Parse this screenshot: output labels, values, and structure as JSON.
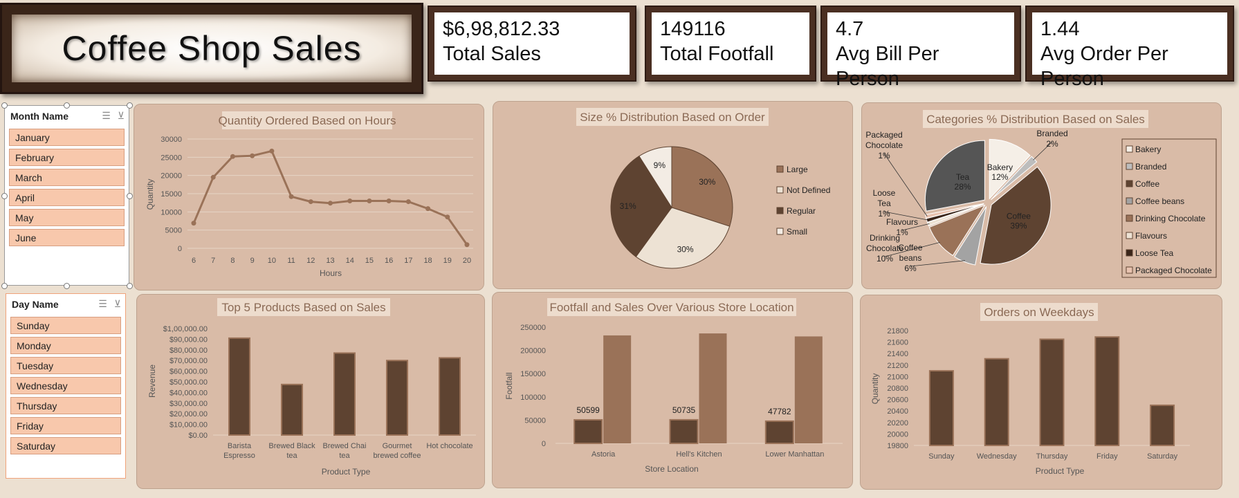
{
  "title": "Coffee Shop Sales",
  "kpis": [
    {
      "value": "$6,98,812.33",
      "label": "Total Sales"
    },
    {
      "value": "149116",
      "label": "Total Footfall"
    },
    {
      "value": "4.7",
      "label": "Avg Bill Per Person"
    },
    {
      "value": "1.44",
      "label": "Avg Order Per Person"
    }
  ],
  "month_slicer": {
    "header": "Month Name",
    "items": [
      "January",
      "February",
      "March",
      "April",
      "May",
      "June"
    ]
  },
  "day_slicer": {
    "header": "Day Name",
    "items": [
      "Sunday",
      "Monday",
      "Tuesday",
      "Wednesday",
      "Thursday",
      "Friday",
      "Saturday"
    ]
  },
  "colors": {
    "dark": "#5e4331",
    "medium": "#9a7258",
    "light": "#ede2d4",
    "gray": "#555555",
    "panel": "#d9bba7"
  },
  "chart_data": [
    {
      "id": "hours",
      "type": "line",
      "title": "Quantity Ordered Based on Hours",
      "xlabel": "Hours",
      "ylabel": "Quantity",
      "x": [
        6,
        7,
        8,
        9,
        10,
        11,
        12,
        13,
        14,
        15,
        16,
        17,
        18,
        19,
        20
      ],
      "values": [
        6900,
        19500,
        25200,
        25400,
        26700,
        14200,
        12800,
        12400,
        13000,
        13000,
        13000,
        12800,
        10900,
        8600,
        1000
      ],
      "ylim": [
        0,
        30000
      ],
      "yticks": [
        0,
        5000,
        10000,
        15000,
        20000,
        25000,
        30000
      ],
      "grid": true
    },
    {
      "id": "size",
      "type": "pie",
      "title": "Size % Distribution Based on Order",
      "categories": [
        "Large",
        "Not Defined",
        "Regular",
        "Small"
      ],
      "values": [
        30,
        30,
        31,
        9
      ],
      "labels": [
        "30%",
        "30%",
        "31%",
        "9%"
      ],
      "colors": [
        "#9a7258",
        "#ede2d4",
        "#5e4331",
        "#f3ece4"
      ],
      "legend": "right"
    },
    {
      "id": "categories",
      "type": "pie",
      "title": "Categories % Distribution Based on Sales",
      "categories": [
        "Bakery",
        "Branded",
        "Coffee",
        "Coffee beans",
        "Drinking Chocolate",
        "Flavours",
        "Loose Tea",
        "Packaged Chocolate",
        "Tea"
      ],
      "values": [
        12,
        2,
        39,
        6,
        10,
        1,
        1,
        1,
        28
      ],
      "label_names": [
        "Bakery",
        "Branded",
        "Coffee",
        "Coffee beans",
        "Drinking Chocolate",
        "Flavours",
        "Loose Tea",
        "Packaged Chocolate",
        "Tea"
      ],
      "labels": [
        "12%",
        "2%",
        "39%",
        "6%",
        "10%",
        "1%",
        "1%",
        "1%",
        "28%"
      ],
      "colors": [
        "#f5efe7",
        "#bdbdbd",
        "#5e4331",
        "#a3a3a3",
        "#9a7258",
        "#ede2d4",
        "#3a2519",
        "#e8c3b0",
        "#555555"
      ],
      "legend_entries": [
        "Bakery",
        "Branded",
        "Coffee",
        "Coffee beans",
        "Drinking Chocolate",
        "Flavours",
        "Loose Tea",
        "Packaged Chocolate"
      ],
      "legend": "right"
    },
    {
      "id": "top5",
      "type": "bar",
      "title": "Top 5 Products Based on Sales",
      "xlabel": "Product Type",
      "ylabel": "Revenue",
      "categories": [
        "Barista Espresso",
        "Brewed Black tea",
        "Brewed Chai tea",
        "Gourmet brewed coffee",
        "Hot chocolate"
      ],
      "values": [
        91000,
        47500,
        77000,
        70000,
        72500
      ],
      "ylim": [
        0,
        100000
      ],
      "yticks": [
        "$0.00",
        "$10,000.00",
        "$20,000.00",
        "$30,000.00",
        "$40,000.00",
        "$50,000.00",
        "$60,000.00",
        "$70,000.00",
        "$80,000.00",
        "$90,000.00",
        "$1,00,000.00"
      ]
    },
    {
      "id": "store",
      "type": "bar",
      "title": "Footfall and Sales Over Various Store Location",
      "xlabel": "Store Location",
      "ylabel": "Footfall",
      "categories": [
        "Astoria",
        "Hell's Kitchen",
        "Lower Manhattan"
      ],
      "series": [
        {
          "values": [
            50599,
            50735,
            47782
          ],
          "data_labels": [
            "50599",
            "50735",
            "47782"
          ]
        },
        {
          "values": [
            232244,
            236511,
            230057
          ]
        }
      ],
      "ylim": [
        0,
        250000
      ],
      "yticks": [
        0,
        50000,
        100000,
        150000,
        200000,
        250000
      ]
    },
    {
      "id": "weekdays",
      "type": "bar",
      "title": "Orders on Weekdays",
      "xlabel": "Product Type",
      "ylabel": "Quantity",
      "categories": [
        "Sunday",
        "Wednesday",
        "Thursday",
        "Friday",
        "Saturday"
      ],
      "values": [
        21100,
        21310,
        21650,
        21690,
        20500
      ],
      "ylim": [
        19800,
        21800
      ],
      "yticks": [
        19800,
        20000,
        20200,
        20400,
        20600,
        20800,
        21000,
        21200,
        21400,
        21600,
        21800
      ]
    }
  ]
}
